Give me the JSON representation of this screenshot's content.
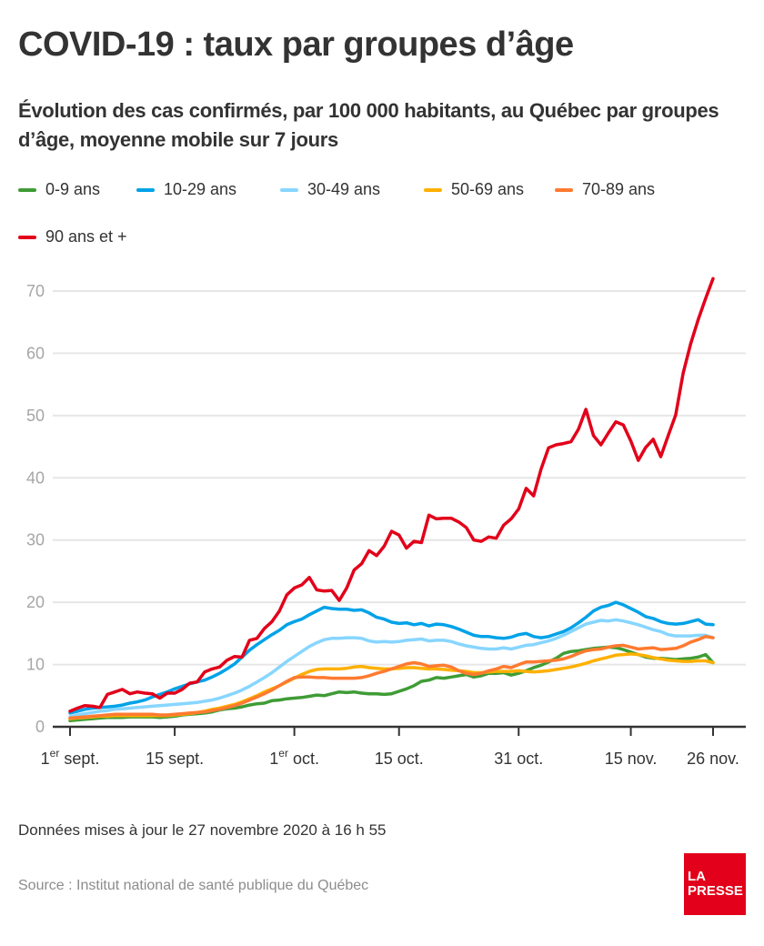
{
  "header": {
    "title": "COVID-19 : taux par groupes d’âge",
    "subtitle": "Évolution des cas confirmés, par 100 000 habitants, au Québec par groupes d’âge, moyenne mobile sur 7 jours"
  },
  "footer": {
    "updated": "Données mises à jour le 27 novembre 2020 à 16 h 55",
    "source": "Source : Institut national de santé publique du Québec",
    "logo_line1": "LA",
    "logo_line2": "PRESSE"
  },
  "chart_data": {
    "type": "line",
    "title": "COVID-19 : taux par groupes d’âge",
    "subtitle": "Évolution des cas confirmés, par 100 000 habitants, au Québec par groupes d’âge, moyenne mobile sur 7 jours",
    "xlabel": "",
    "ylabel": "",
    "x_start": "2020-09-01",
    "x_end": "2020-11-26",
    "x_unit": "day",
    "ylim": [
      0,
      70
    ],
    "yticks": [
      0,
      10,
      20,
      30,
      40,
      50,
      60,
      70
    ],
    "grid": true,
    "legend_position": "top",
    "xticks": [
      {
        "day": 0,
        "label": "1",
        "sup": "er",
        "rest": " sept."
      },
      {
        "day": 14,
        "label": "15 sept.",
        "sup": "",
        "rest": ""
      },
      {
        "day": 30,
        "label": "1",
        "sup": "er",
        "rest": " oct."
      },
      {
        "day": 44,
        "label": "15 oct.",
        "sup": "",
        "rest": ""
      },
      {
        "day": 60,
        "label": "31 oct.",
        "sup": "",
        "rest": ""
      },
      {
        "day": 75,
        "label": "15 nov.",
        "sup": "",
        "rest": ""
      },
      {
        "day": 86,
        "label": "26 nov.",
        "sup": "",
        "rest": ""
      }
    ],
    "series": [
      {
        "name": "0-9 ans",
        "color": "#3f9c35",
        "values": [
          1.0,
          1.1,
          1.2,
          1.3,
          1.4,
          1.5,
          1.5,
          1.5,
          1.6,
          1.6,
          1.6,
          1.6,
          1.5,
          1.6,
          1.7,
          1.9,
          2.0,
          2.1,
          2.2,
          2.4,
          2.7,
          2.9,
          3.0,
          3.2,
          3.5,
          3.7,
          3.8,
          4.2,
          4.3,
          4.5,
          4.6,
          4.7,
          4.9,
          5.1,
          5.0,
          5.3,
          5.6,
          5.5,
          5.6,
          5.4,
          5.3,
          5.3,
          5.2,
          5.3,
          5.7,
          6.1,
          6.6,
          7.3,
          7.5,
          7.9,
          7.8,
          8.0,
          8.2,
          8.4,
          8.0,
          8.2,
          8.6,
          8.6,
          8.7,
          8.3,
          8.6,
          9.0,
          9.5,
          9.9,
          10.4,
          11.0,
          11.8,
          12.1,
          12.2,
          12.4,
          12.6,
          12.7,
          12.8,
          12.7,
          12.4,
          12.0,
          11.6,
          11.2,
          11.0,
          11.0,
          10.9,
          10.8,
          10.9,
          11.0,
          11.2,
          11.6,
          10.3
        ]
      },
      {
        "name": "10-29 ans",
        "color": "#00a2e8",
        "values": [
          2.2,
          2.5,
          2.8,
          3.0,
          3.1,
          3.2,
          3.3,
          3.5,
          3.8,
          4.0,
          4.3,
          4.8,
          5.2,
          5.6,
          6.1,
          6.5,
          6.9,
          7.2,
          7.5,
          8.0,
          8.6,
          9.3,
          10.1,
          11.2,
          12.3,
          13.2,
          14.0,
          14.8,
          15.5,
          16.4,
          16.9,
          17.3,
          18.0,
          18.6,
          19.2,
          19.0,
          18.9,
          18.9,
          18.7,
          18.8,
          18.3,
          17.6,
          17.3,
          16.8,
          16.6,
          16.7,
          16.4,
          16.6,
          16.2,
          16.5,
          16.4,
          16.1,
          15.7,
          15.2,
          14.7,
          14.5,
          14.5,
          14.3,
          14.2,
          14.4,
          14.8,
          15.0,
          14.5,
          14.3,
          14.5,
          14.9,
          15.3,
          15.9,
          16.7,
          17.6,
          18.6,
          19.2,
          19.5,
          20.0,
          19.6,
          19.0,
          18.4,
          17.7,
          17.4,
          16.9,
          16.6,
          16.5,
          16.6,
          16.9,
          17.2,
          16.5,
          16.4
        ]
      },
      {
        "name": "30-49 ans",
        "color": "#87d6ff",
        "values": [
          1.6,
          1.9,
          2.1,
          2.3,
          2.5,
          2.6,
          2.8,
          2.9,
          3.0,
          3.1,
          3.2,
          3.3,
          3.4,
          3.5,
          3.6,
          3.7,
          3.8,
          3.9,
          4.1,
          4.3,
          4.6,
          5.0,
          5.4,
          5.9,
          6.5,
          7.2,
          7.9,
          8.7,
          9.6,
          10.5,
          11.3,
          12.1,
          12.9,
          13.5,
          14.0,
          14.2,
          14.2,
          14.3,
          14.3,
          14.2,
          13.8,
          13.6,
          13.7,
          13.6,
          13.7,
          13.9,
          14.0,
          14.1,
          13.8,
          13.9,
          13.9,
          13.7,
          13.3,
          13.0,
          12.8,
          12.6,
          12.5,
          12.5,
          12.7,
          12.5,
          12.8,
          13.1,
          13.2,
          13.5,
          13.8,
          14.2,
          14.7,
          15.3,
          15.9,
          16.5,
          16.8,
          17.1,
          17.0,
          17.2,
          17.0,
          16.7,
          16.4,
          16.0,
          15.6,
          15.3,
          14.8,
          14.6,
          14.6,
          14.6,
          14.7,
          14.7,
          14.3
        ]
      },
      {
        "name": "50-69 ans",
        "color": "#ffb000",
        "values": [
          1.3,
          1.4,
          1.5,
          1.6,
          1.7,
          1.7,
          1.8,
          1.8,
          1.8,
          1.8,
          1.8,
          1.8,
          1.8,
          1.8,
          1.9,
          2.0,
          2.1,
          2.3,
          2.5,
          2.8,
          3.0,
          3.3,
          3.6,
          4.0,
          4.5,
          5.0,
          5.6,
          6.1,
          6.6,
          7.2,
          7.8,
          8.4,
          8.9,
          9.2,
          9.3,
          9.3,
          9.3,
          9.4,
          9.6,
          9.7,
          9.5,
          9.4,
          9.3,
          9.3,
          9.4,
          9.5,
          9.5,
          9.4,
          9.3,
          9.3,
          9.2,
          9.1,
          9.0,
          8.9,
          8.7,
          8.7,
          8.8,
          8.9,
          8.9,
          8.9,
          9.0,
          8.9,
          8.8,
          8.9,
          9.0,
          9.2,
          9.4,
          9.6,
          9.9,
          10.2,
          10.6,
          10.9,
          11.2,
          11.5,
          11.6,
          11.7,
          11.6,
          11.4,
          11.1,
          10.9,
          10.7,
          10.6,
          10.5,
          10.5,
          10.6,
          10.6,
          10.3
        ]
      },
      {
        "name": "70-89 ans",
        "color": "#ff7a30",
        "values": [
          1.4,
          1.5,
          1.6,
          1.7,
          1.8,
          1.9,
          2.0,
          2.0,
          2.0,
          2.0,
          2.0,
          2.0,
          1.9,
          1.9,
          2.0,
          2.1,
          2.2,
          2.3,
          2.4,
          2.6,
          2.8,
          3.1,
          3.4,
          3.8,
          4.3,
          4.8,
          5.3,
          5.9,
          6.6,
          7.3,
          7.9,
          8.0,
          8.0,
          7.9,
          7.9,
          7.8,
          7.8,
          7.8,
          7.8,
          7.9,
          8.2,
          8.6,
          8.9,
          9.3,
          9.7,
          10.1,
          10.3,
          10.1,
          9.7,
          9.8,
          9.9,
          9.6,
          9.0,
          8.6,
          8.4,
          8.6,
          9.0,
          9.3,
          9.7,
          9.5,
          10.0,
          10.4,
          10.4,
          10.5,
          10.6,
          10.7,
          10.9,
          11.3,
          11.8,
          12.2,
          12.4,
          12.5,
          12.8,
          13.0,
          13.1,
          12.8,
          12.5,
          12.6,
          12.7,
          12.4,
          12.5,
          12.6,
          13.0,
          13.6,
          14.0,
          14.5,
          14.3
        ]
      },
      {
        "name": "90 ans et +",
        "color": "#e2001a",
        "values": [
          2.5,
          3.0,
          3.4,
          3.3,
          3.1,
          5.2,
          5.6,
          6.0,
          5.3,
          5.6,
          5.4,
          5.3,
          4.6,
          5.4,
          5.4,
          6.0,
          7.0,
          7.2,
          8.8,
          9.3,
          9.6,
          10.7,
          11.3,
          11.2,
          13.9,
          14.2,
          15.8,
          16.9,
          18.6,
          21.2,
          22.3,
          22.8,
          24.0,
          22.0,
          21.8,
          21.9,
          20.3,
          22.3,
          25.2,
          26.2,
          28.3,
          27.5,
          29.0,
          31.4,
          30.8,
          28.7,
          29.8,
          29.6,
          34.0,
          33.4,
          33.5,
          33.5,
          32.9,
          32.0,
          30.0,
          29.8,
          30.5,
          30.3,
          32.4,
          33.4,
          35.0,
          38.3,
          37.1,
          41.4,
          44.8,
          45.3,
          45.5,
          45.8,
          47.8,
          51.0,
          46.8,
          45.3,
          47.2,
          49.0,
          48.5,
          45.9,
          42.8,
          44.9,
          46.2,
          43.4,
          46.8,
          50.1,
          56.8,
          61.5,
          65.4,
          68.8,
          72.0
        ]
      }
    ]
  }
}
